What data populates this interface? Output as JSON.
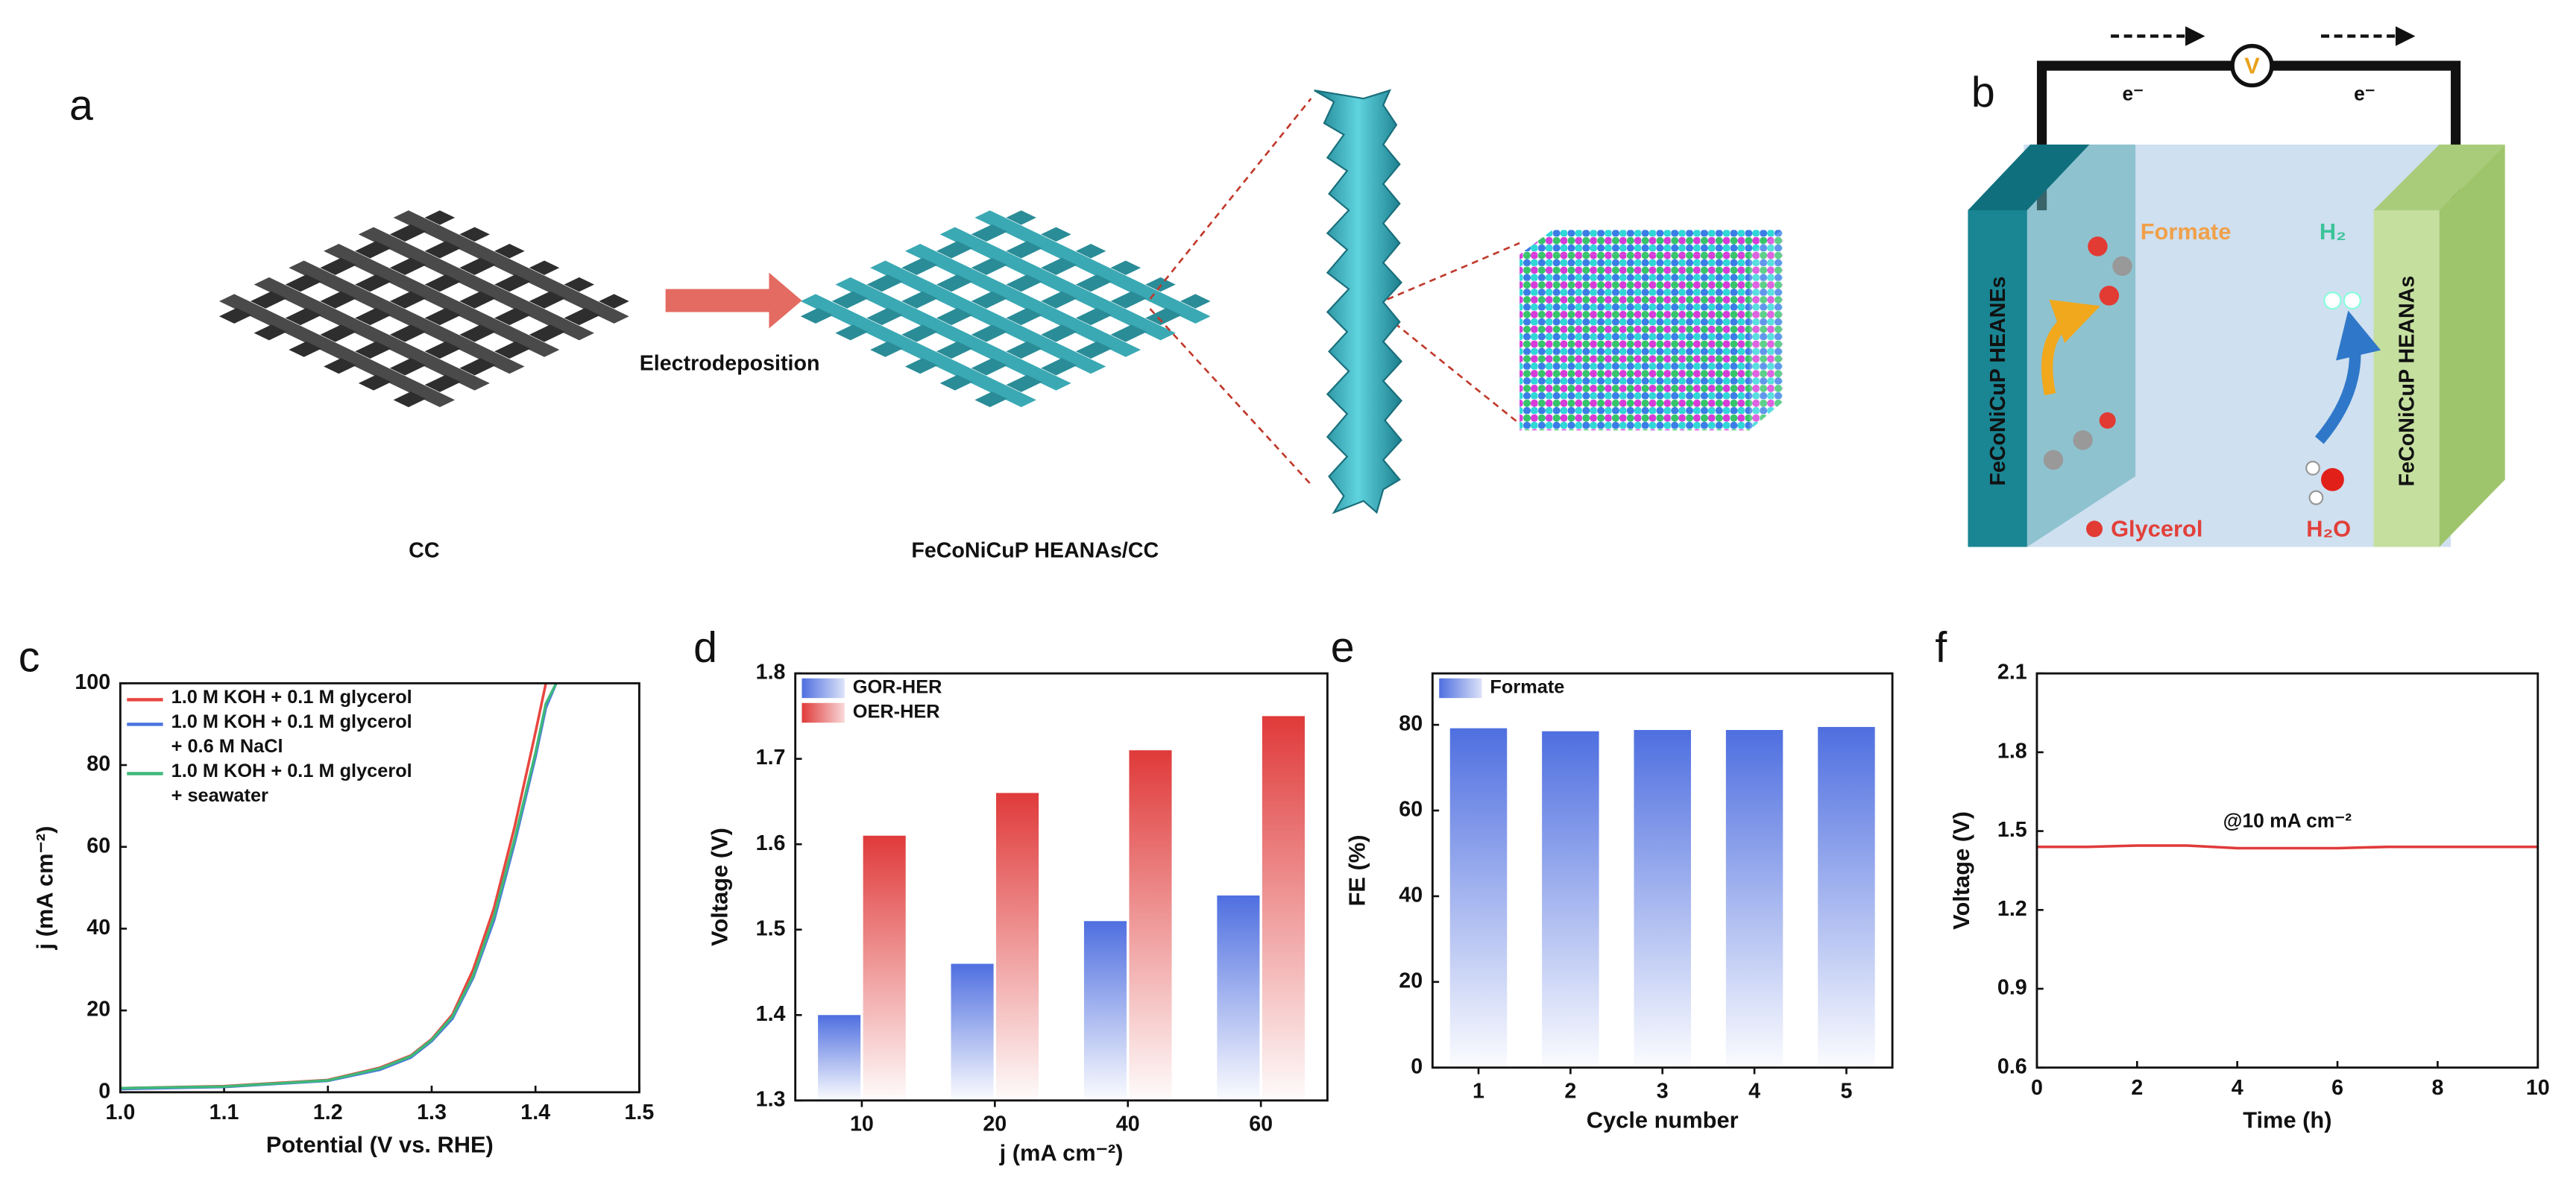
{
  "panels": {
    "a": {
      "letter": "a",
      "arrow_label": "Electrodeposition",
      "left_label": "CC",
      "right_label": "FeCoNiCuP HEANAs/CC"
    },
    "b": {
      "letter": "b",
      "meter": "V",
      "electron_left": "e⁻",
      "electron_right": "e⁻",
      "formate": "Formate",
      "h2": "H₂",
      "anode": "FeCoNiCuP HEANEs",
      "cathode": "FeCoNiCuP HEANAs",
      "glycerol": "Glycerol",
      "water": "H₂O"
    }
  },
  "chart_data": [
    {
      "type": "line",
      "letter": "c",
      "x_label": "Potential (V vs. RHE)",
      "y_label": "j (mA cm⁻²)",
      "x": [
        1.0,
        1.1,
        1.2,
        1.25,
        1.28,
        1.3,
        1.32,
        1.34,
        1.36,
        1.38,
        1.4,
        1.41,
        1.42
      ],
      "series": [
        {
          "name": "1.0 M KOH + 0.1 M glycerol",
          "color": "#e8463f",
          "values": [
            1,
            1.5,
            3,
            6,
            9,
            13,
            19,
            30,
            45,
            65,
            88,
            100,
            null
          ]
        },
        {
          "name": "1.0 M KOH + 0.1 M glycerol\n+ 0.6 M NaCl",
          "color": "#4a74e0",
          "values": [
            0.8,
            1.3,
            2.8,
            5.5,
            8.5,
            12.5,
            18,
            28,
            42,
            61,
            82,
            94,
            100
          ]
        },
        {
          "name": "1.0 M KOH + 0.1 M glycerol\n+ seawater",
          "color": "#3fb87a",
          "values": [
            1,
            1.4,
            2.9,
            5.8,
            8.8,
            12.8,
            18.5,
            28.5,
            43,
            62,
            83,
            95,
            100
          ]
        }
      ],
      "xlim": [
        1.0,
        1.5
      ],
      "xticks": [
        {
          "value": 1.0,
          "label": "1.0"
        },
        1.1,
        1.2,
        1.3,
        1.4,
        1.5
      ],
      "ylim": [
        0,
        100
      ],
      "yticks": [
        0,
        20,
        40,
        60,
        80,
        100
      ]
    },
    {
      "type": "bar",
      "letter": "d",
      "x_label": "j (mA cm⁻²)",
      "y_label": "Voltage (V)",
      "categories": [
        "10",
        "20",
        "40",
        "60"
      ],
      "series": [
        {
          "name": "GOR-HER",
          "color": "#4f6fe0",
          "values": [
            1.4,
            1.46,
            1.51,
            1.54
          ]
        },
        {
          "name": "OER-HER",
          "color": "#e03a3a",
          "values": [
            1.61,
            1.66,
            1.71,
            1.75
          ]
        }
      ],
      "ylim": [
        1.3,
        1.8
      ],
      "yticks": [
        1.3,
        1.4,
        1.5,
        1.6,
        1.7,
        1.8
      ]
    },
    {
      "type": "bar",
      "letter": "e",
      "x_label": "Cycle number",
      "y_label": "FE (%)",
      "categories": [
        "1",
        "2",
        "3",
        "4",
        "5"
      ],
      "series": [
        {
          "name": "Formate",
          "color": "#4f6fe0",
          "values": [
            79.2,
            78.5,
            78.8,
            78.8,
            79.5
          ]
        }
      ],
      "ylim": [
        0,
        92
      ],
      "yticks": [
        0,
        20,
        40,
        60,
        80
      ]
    },
    {
      "type": "line",
      "letter": "f",
      "x_label": "Time (h)",
      "y_label": "Voltage (V)",
      "annotation": "@10 mA cm⁻²",
      "x": [
        0,
        1,
        2,
        3,
        3.5,
        4,
        5,
        6,
        7,
        8,
        9,
        10
      ],
      "series": [
        {
          "name": null,
          "color": "#e03a3a",
          "values": [
            1.44,
            1.44,
            1.445,
            1.445,
            1.44,
            1.435,
            1.435,
            1.435,
            1.44,
            1.44,
            1.44,
            1.44
          ]
        }
      ],
      "xlim": [
        0,
        10
      ],
      "xticks": [
        0,
        2,
        4,
        6,
        8,
        10
      ],
      "ylim": [
        0.6,
        2.1
      ],
      "yticks": [
        0.6,
        0.9,
        1.2,
        1.5,
        1.8,
        2.1
      ]
    }
  ]
}
